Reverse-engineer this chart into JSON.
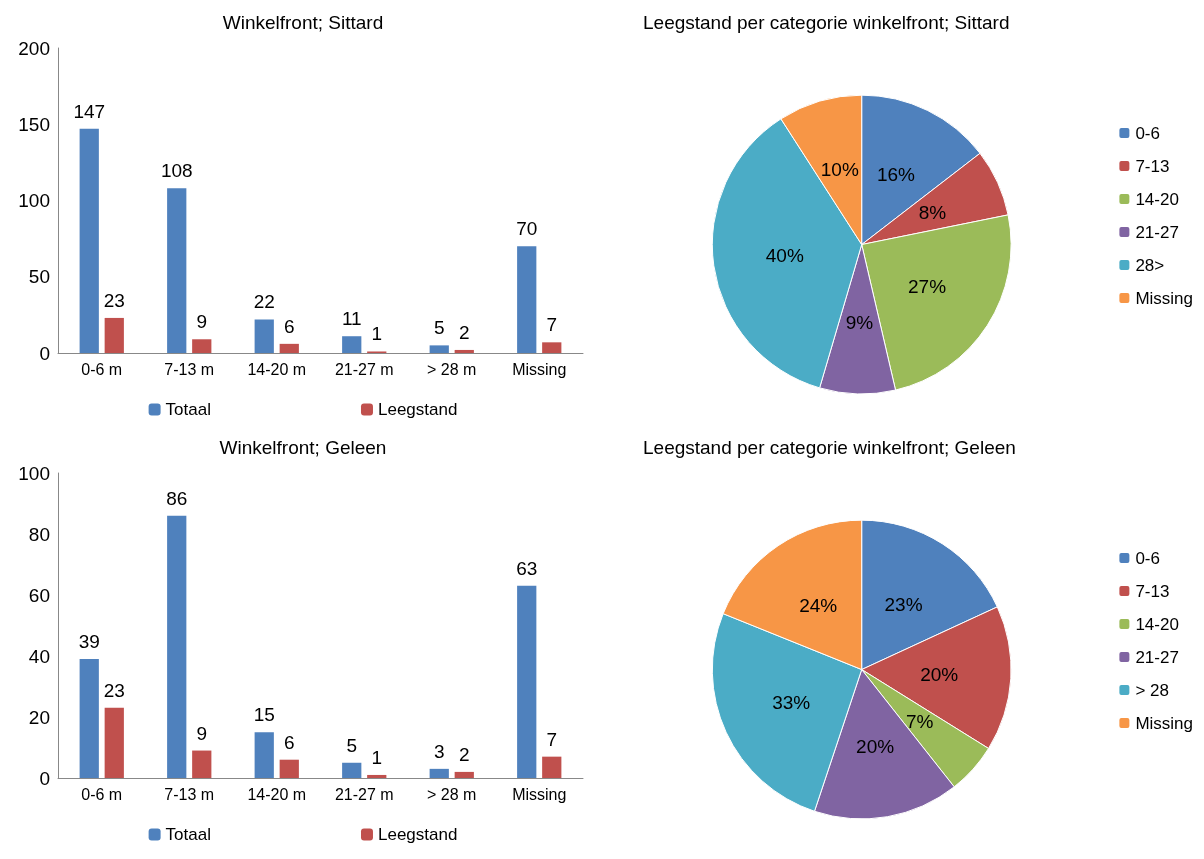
{
  "chart_data": [
    {
      "type": "bar",
      "title": "Winkelfront; Sittard",
      "categories": [
        "0-6 m",
        "7-13 m",
        "14-20 m",
        "21-27 m",
        "> 28 m",
        "Missing"
      ],
      "series": [
        {
          "name": "Totaal",
          "color": "#4f81bd",
          "values": [
            147,
            108,
            22,
            11,
            5,
            70
          ]
        },
        {
          "name": "Leegstand",
          "color": "#c0504d",
          "values": [
            23,
            9,
            6,
            1,
            2,
            7
          ]
        }
      ],
      "ylim": [
        0,
        200
      ],
      "yticks": [
        0,
        50,
        100,
        150,
        200
      ],
      "grid": false,
      "legend": "bottom",
      "data_labels": true
    },
    {
      "type": "pie",
      "title": "Leegstand per categorie winkelfront; Sittard",
      "categories": [
        "0-6",
        "7-13",
        "14-20",
        "21-27",
        "28>",
        "Missing"
      ],
      "values": [
        16,
        8,
        27,
        9,
        40,
        10
      ],
      "value_labels": [
        "16%",
        "8%",
        "27%",
        "9%",
        "40%",
        "10%"
      ],
      "colors": [
        "#4f81bd",
        "#c0504d",
        "#9bbb59",
        "#8064a2",
        "#4bacc6",
        "#f79646"
      ],
      "legend": "right"
    },
    {
      "type": "bar",
      "title": "Winkelfront; Geleen",
      "categories": [
        "0-6 m",
        "7-13 m",
        "14-20 m",
        "21-27 m",
        "> 28 m",
        "Missing"
      ],
      "series": [
        {
          "name": "Totaal",
          "color": "#4f81bd",
          "values": [
            39,
            86,
            15,
            5,
            3,
            63
          ]
        },
        {
          "name": "Leegstand",
          "color": "#c0504d",
          "values": [
            23,
            9,
            6,
            1,
            2,
            7
          ]
        }
      ],
      "ylim": [
        0,
        100
      ],
      "yticks": [
        0,
        20,
        40,
        60,
        80,
        100
      ],
      "grid": false,
      "legend": "bottom",
      "data_labels": true
    },
    {
      "type": "pie",
      "title": "Leegstand per categorie winkelfront; Geleen",
      "categories": [
        "0-6",
        "7-13",
        "14-20",
        "21-27",
        "> 28",
        "Missing"
      ],
      "values": [
        23,
        20,
        7,
        20,
        33,
        24
      ],
      "value_labels": [
        "23%",
        "20%",
        "7%",
        "20%",
        "33%",
        "24%"
      ],
      "colors": [
        "#4f81bd",
        "#c0504d",
        "#9bbb59",
        "#8064a2",
        "#4bacc6",
        "#f79646"
      ],
      "legend": "right"
    }
  ]
}
